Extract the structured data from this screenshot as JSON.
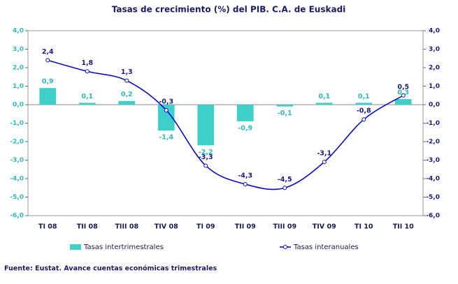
{
  "chart_data": {
    "type": "bar-line",
    "title": "Tasas de crecimiento (%) del PIB. C.A. de Euskadi",
    "categories": [
      "TI 08",
      "TII 08",
      "TIII 08",
      "TIV 08",
      "TI 09",
      "TII 09",
      "TIII 09",
      "TIV 09",
      "TI 10",
      "TII 10"
    ],
    "series": [
      {
        "name": "Tasas intertrimestrales",
        "type": "bar",
        "color": "#3fcfc9",
        "values": [
          0.9,
          0.1,
          0.2,
          -1.4,
          -2.2,
          -0.9,
          -0.1,
          0.1,
          0.1,
          0.3
        ],
        "value_labels": [
          "0,9",
          "0,1",
          "0,2",
          "-1,4",
          "-2,2",
          "-0,9",
          "-0,1",
          "0,1",
          "0,1",
          "0,3"
        ]
      },
      {
        "name": "Tasas interanuales",
        "type": "line",
        "color": "#0a0acc",
        "axis": "y2",
        "values": [
          2.4,
          1.8,
          1.3,
          -0.3,
          -3.3,
          -4.3,
          -4.5,
          -3.1,
          -0.8,
          0.5
        ],
        "value_labels": [
          "2,4",
          "1,8",
          "1,3",
          "-0,3",
          "-3,3",
          "-4,3",
          "-4,5",
          "-3,1",
          "-0,8",
          "0,5"
        ]
      }
    ],
    "ylim": [
      -6,
      4
    ],
    "yticks": [
      {
        "value": 4,
        "label": "4,0"
      },
      {
        "value": 3,
        "label": "3,0"
      },
      {
        "value": 2,
        "label": "2,0"
      },
      {
        "value": 1,
        "label": "1,0"
      },
      {
        "value": 0,
        "label": "0,0"
      },
      {
        "value": -1,
        "label": "-1,0"
      },
      {
        "value": -2,
        "label": "-2,0"
      },
      {
        "value": -3,
        "label": "-3,0"
      },
      {
        "value": -4,
        "label": "-4,0"
      },
      {
        "value": -5,
        "label": "-5,0"
      },
      {
        "value": -6,
        "label": "-6,0"
      }
    ],
    "y2lim": [
      -6,
      4
    ],
    "y2ticks": [
      {
        "value": 4,
        "label": "4,0"
      },
      {
        "value": 3,
        "label": "3,0"
      },
      {
        "value": 2,
        "label": "2,0"
      },
      {
        "value": 1,
        "label": "1,0"
      },
      {
        "value": 0,
        "label": "0,0"
      },
      {
        "value": -1,
        "label": "-1,0"
      },
      {
        "value": -2,
        "label": "-2,0"
      },
      {
        "value": -3,
        "label": "-3,0"
      },
      {
        "value": -4,
        "label": "-4,0"
      },
      {
        "value": -5,
        "label": "-5,0"
      },
      {
        "value": -6,
        "label": "-6,0"
      }
    ],
    "source": "Fuente: Eustat. Avance cuentas económicas trimestrales",
    "grid": false
  }
}
